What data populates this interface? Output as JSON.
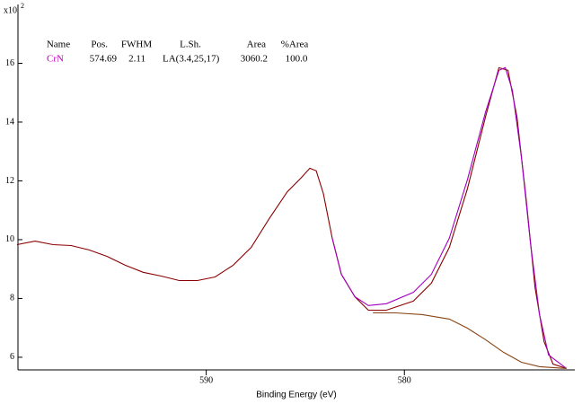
{
  "chart_data": {
    "type": "line",
    "x_label": "Binding Energy (eV)",
    "y_unit": {
      "base": "x10",
      "exponent": "2"
    },
    "xlim": [
      599.5,
      571.4
    ],
    "xticks": [
      590,
      580
    ],
    "ylim": [
      5.57,
      18
    ],
    "yticks": [
      6,
      8,
      10,
      12,
      14,
      16
    ],
    "peak_table": {
      "header": [
        "Name",
        "Pos.",
        "FWHM",
        "L.Sh.",
        "Area",
        "%Area"
      ],
      "rows": [
        {
          "cells": [
            "CrN",
            "574.69",
            "2.11",
            "LA(3.4,25,17)",
            "3060.2",
            "100.0"
          ],
          "color": "#c000c0"
        }
      ]
    },
    "series": [
      {
        "color": "#8b0000",
        "x": [
          599.55,
          598.64,
          597.73,
          596.82,
          595.91,
          595,
          594.09,
          593.18,
          592.27,
          591.36,
          590.45,
          589.55,
          588.64,
          587.73,
          586.82,
          585.91,
          585.23,
          584.77,
          584.45,
          584.09,
          583.64,
          583.18,
          582.5,
          581.82,
          580.91,
          579.55,
          578.64,
          577.73,
          576.82,
          575.91,
          575.23,
          574.77,
          574.32,
          573.86,
          573.41,
          572.95,
          572.5,
          571.82
        ],
        "values": [
          9.83,
          9.95,
          9.83,
          9.8,
          9.65,
          9.43,
          9.13,
          8.89,
          8.76,
          8.61,
          8.61,
          8.73,
          9.13,
          9.74,
          10.72,
          11.63,
          12.09,
          12.43,
          12.34,
          11.57,
          10.05,
          8.82,
          8.06,
          7.6,
          7.6,
          7.91,
          8.52,
          9.74,
          11.73,
          14.17,
          15.85,
          15.76,
          14.17,
          11.42,
          8.37,
          6.53,
          5.77,
          5.62
        ]
      },
      {
        "color": "#a000c0",
        "x": [
          583.64,
          583.18,
          582.5,
          581.82,
          580.91,
          579.55,
          578.64,
          577.73,
          576.82,
          575.91,
          575.23,
          574.91,
          574.55,
          574.09,
          573.64,
          573.18,
          572.73,
          571.82
        ],
        "values": [
          10.05,
          8.82,
          8.06,
          7.76,
          7.82,
          8.21,
          8.82,
          10.05,
          12.04,
          14.33,
          15.76,
          15.85,
          15.08,
          12.79,
          9.89,
          7.45,
          6.08,
          5.62
        ]
      },
      {
        "color": "#8b4513",
        "x": [
          581.59,
          580.45,
          579.09,
          577.73,
          576.82,
          575.91,
          575,
          574.09,
          573.18,
          571.82
        ],
        "values": [
          7.51,
          7.51,
          7.45,
          7.3,
          6.99,
          6.6,
          6.17,
          5.83,
          5.68,
          5.62
        ]
      }
    ]
  }
}
